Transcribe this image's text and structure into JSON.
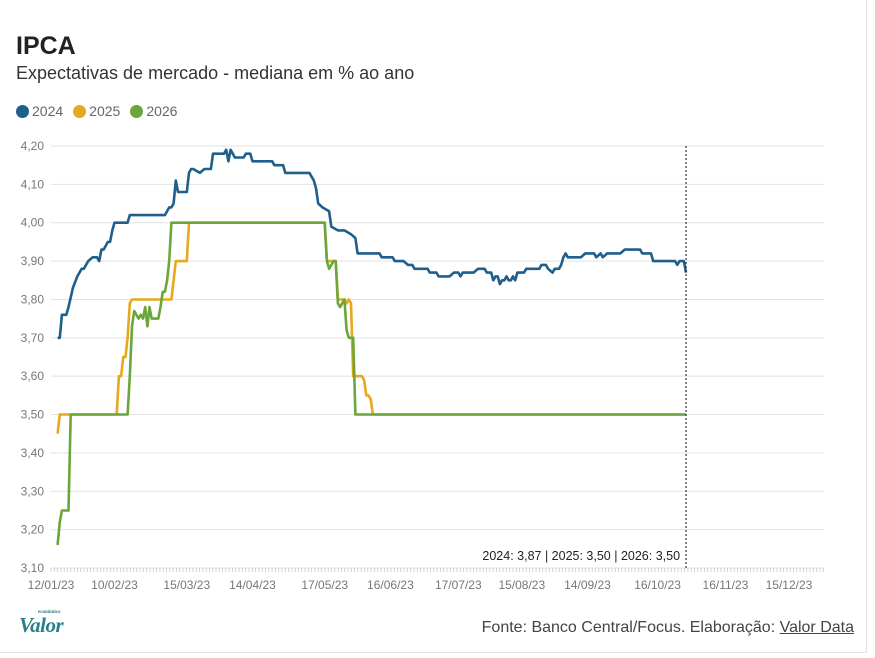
{
  "header": {
    "title": "IPCA",
    "subtitle": "Expectativas de mercado - mediana em % ao ano"
  },
  "legend": [
    {
      "label": "2024",
      "color": "#1f5f8b"
    },
    {
      "label": "2025",
      "color": "#e8a81c"
    },
    {
      "label": "2026",
      "color": "#6aa63c"
    }
  ],
  "footer": {
    "source_prefix": "Fonte: Banco Central/Focus. Elaboração: ",
    "source_link": "Valor Data",
    "logo": "Valor",
    "logo_small": "econômico"
  },
  "chart_data": {
    "type": "line",
    "y_tick_labels": [
      "3,10",
      "3,20",
      "3,30",
      "3,40",
      "3,50",
      "3,60",
      "3,70",
      "3,80",
      "3,90",
      "4,00",
      "4,10",
      "4,20"
    ],
    "ylim": [
      3.1,
      4.2
    ],
    "x_tick_labels": [
      "12/01/23",
      "10/02/23",
      "15/03/23",
      "14/04/23",
      "17/05/23",
      "16/06/23",
      "17/07/23",
      "15/08/23",
      "14/09/23",
      "16/10/23",
      "16/11/23",
      "15/12/23"
    ],
    "x_tick_days": [
      0,
      29,
      62,
      92,
      125,
      155,
      186,
      215,
      245,
      277,
      308,
      337
    ],
    "x_range_days": [
      0,
      353
    ],
    "grid": true,
    "annotation": "2024: 3,87 | 2025: 3,50 | 2026: 3,50",
    "series": [
      {
        "name": "2024",
        "color": "#1f5f8b",
        "points": [
          [
            3,
            3.7
          ],
          [
            4,
            3.7
          ],
          [
            5,
            3.76
          ],
          [
            7,
            3.76
          ],
          [
            8,
            3.78
          ],
          [
            10,
            3.83
          ],
          [
            12,
            3.86
          ],
          [
            14,
            3.88
          ],
          [
            15,
            3.88
          ],
          [
            17,
            3.9
          ],
          [
            19,
            3.91
          ],
          [
            21,
            3.91
          ],
          [
            22,
            3.9
          ],
          [
            23,
            3.93
          ],
          [
            24,
            3.93
          ],
          [
            26,
            3.95
          ],
          [
            27,
            3.95
          ],
          [
            28,
            3.98
          ],
          [
            29,
            4.0
          ],
          [
            35,
            4.0
          ],
          [
            36,
            4.02
          ],
          [
            47,
            4.02
          ],
          [
            52,
            4.02
          ],
          [
            53,
            4.03
          ],
          [
            54,
            4.04
          ],
          [
            55,
            4.04
          ],
          [
            56,
            4.05
          ],
          [
            57,
            4.11
          ],
          [
            58,
            4.08
          ],
          [
            62,
            4.08
          ],
          [
            63,
            4.13
          ],
          [
            64,
            4.14
          ],
          [
            65,
            4.14
          ],
          [
            68,
            4.13
          ],
          [
            70,
            4.14
          ],
          [
            73,
            4.14
          ],
          [
            74,
            4.18
          ],
          [
            79,
            4.18
          ],
          [
            80,
            4.19
          ],
          [
            81,
            4.16
          ],
          [
            82,
            4.19
          ],
          [
            84,
            4.17
          ],
          [
            86,
            4.17
          ],
          [
            88,
            4.17
          ],
          [
            89,
            4.18
          ],
          [
            91,
            4.18
          ],
          [
            92,
            4.16
          ],
          [
            101,
            4.16
          ],
          [
            102,
            4.15
          ],
          [
            106,
            4.15
          ],
          [
            107,
            4.13
          ],
          [
            115,
            4.13
          ],
          [
            118,
            4.13
          ],
          [
            119,
            4.12
          ],
          [
            120,
            4.11
          ],
          [
            121,
            4.09
          ],
          [
            122,
            4.05
          ],
          [
            124,
            4.04
          ],
          [
            127,
            4.03
          ],
          [
            128,
            3.99
          ],
          [
            131,
            3.98
          ],
          [
            134,
            3.98
          ],
          [
            137,
            3.97
          ],
          [
            139,
            3.96
          ],
          [
            140,
            3.92
          ],
          [
            148,
            3.92
          ],
          [
            150,
            3.92
          ],
          [
            151,
            3.91
          ],
          [
            156,
            3.91
          ],
          [
            157,
            3.9
          ],
          [
            161,
            3.9
          ],
          [
            163,
            3.89
          ],
          [
            165,
            3.89
          ],
          [
            166,
            3.88
          ],
          [
            172,
            3.88
          ],
          [
            173,
            3.87
          ],
          [
            176,
            3.87
          ],
          [
            177,
            3.86
          ],
          [
            182,
            3.86
          ],
          [
            184,
            3.87
          ],
          [
            186,
            3.87
          ],
          [
            187,
            3.86
          ],
          [
            188,
            3.87
          ],
          [
            193,
            3.87
          ],
          [
            195,
            3.88
          ],
          [
            198,
            3.88
          ],
          [
            199,
            3.87
          ],
          [
            201,
            3.87
          ],
          [
            202,
            3.85
          ],
          [
            203,
            3.86
          ],
          [
            204,
            3.86
          ],
          [
            205,
            3.84
          ],
          [
            206,
            3.85
          ],
          [
            207,
            3.85
          ],
          [
            208,
            3.86
          ],
          [
            209,
            3.85
          ],
          [
            210,
            3.85
          ],
          [
            211,
            3.86
          ],
          [
            212,
            3.85
          ],
          [
            213,
            3.87
          ],
          [
            216,
            3.87
          ],
          [
            217,
            3.88
          ],
          [
            223,
            3.88
          ],
          [
            224,
            3.89
          ],
          [
            226,
            3.89
          ],
          [
            227,
            3.88
          ],
          [
            229,
            3.87
          ],
          [
            230,
            3.88
          ],
          [
            232,
            3.88
          ],
          [
            233,
            3.89
          ],
          [
            234,
            3.91
          ],
          [
            235,
            3.92
          ],
          [
            236,
            3.91
          ],
          [
            242,
            3.91
          ],
          [
            244,
            3.92
          ],
          [
            248,
            3.92
          ],
          [
            249,
            3.91
          ],
          [
            251,
            3.92
          ],
          [
            252,
            3.91
          ],
          [
            254,
            3.92
          ],
          [
            260,
            3.92
          ],
          [
            262,
            3.93
          ],
          [
            269,
            3.93
          ],
          [
            270,
            3.92
          ],
          [
            274,
            3.92
          ],
          [
            275,
            3.9
          ],
          [
            276,
            3.9
          ],
          [
            285,
            3.9
          ],
          [
            286,
            3.89
          ],
          [
            287,
            3.9
          ],
          [
            289,
            3.9
          ],
          [
            290,
            3.87
          ]
        ]
      },
      {
        "name": "2025",
        "color": "#e8a81c",
        "points": [
          [
            3,
            3.45
          ],
          [
            4,
            3.5
          ],
          [
            30,
            3.5
          ],
          [
            31,
            3.6
          ],
          [
            32,
            3.6
          ],
          [
            33,
            3.65
          ],
          [
            34,
            3.65
          ],
          [
            35,
            3.7
          ],
          [
            36,
            3.79
          ],
          [
            37,
            3.8
          ],
          [
            55,
            3.8
          ],
          [
            56,
            3.85
          ],
          [
            57,
            3.9
          ],
          [
            62,
            3.9
          ],
          [
            63,
            4.0
          ],
          [
            125,
            4.0
          ],
          [
            126,
            3.9
          ],
          [
            130,
            3.9
          ],
          [
            131,
            3.8
          ],
          [
            134,
            3.8
          ],
          [
            135,
            3.79
          ],
          [
            136,
            3.8
          ],
          [
            137,
            3.79
          ],
          [
            138,
            3.6
          ],
          [
            142,
            3.6
          ],
          [
            143,
            3.59
          ],
          [
            144,
            3.55
          ],
          [
            145,
            3.55
          ],
          [
            146,
            3.54
          ],
          [
            147,
            3.5
          ],
          [
            290,
            3.5
          ]
        ]
      },
      {
        "name": "2026",
        "color": "#6aa63c",
        "points": [
          [
            3,
            3.16
          ],
          [
            4,
            3.22
          ],
          [
            5,
            3.25
          ],
          [
            8,
            3.25
          ],
          [
            9,
            3.5
          ],
          [
            35,
            3.5
          ],
          [
            36,
            3.6
          ],
          [
            37,
            3.73
          ],
          [
            38,
            3.77
          ],
          [
            39,
            3.76
          ],
          [
            40,
            3.75
          ],
          [
            41,
            3.76
          ],
          [
            42,
            3.75
          ],
          [
            43,
            3.78
          ],
          [
            44,
            3.73
          ],
          [
            45,
            3.78
          ],
          [
            46,
            3.75
          ],
          [
            49,
            3.75
          ],
          [
            50,
            3.78
          ],
          [
            51,
            3.82
          ],
          [
            52,
            3.82
          ],
          [
            53,
            3.85
          ],
          [
            54,
            3.9
          ],
          [
            55,
            4.0
          ],
          [
            125,
            4.0
          ],
          [
            126,
            3.9
          ],
          [
            127,
            3.88
          ],
          [
            128,
            3.89
          ],
          [
            129,
            3.9
          ],
          [
            130,
            3.9
          ],
          [
            131,
            3.79
          ],
          [
            132,
            3.78
          ],
          [
            133,
            3.79
          ],
          [
            134,
            3.8
          ],
          [
            135,
            3.72
          ],
          [
            136,
            3.7
          ],
          [
            138,
            3.7
          ],
          [
            139,
            3.5
          ],
          [
            290,
            3.5
          ]
        ]
      }
    ]
  }
}
